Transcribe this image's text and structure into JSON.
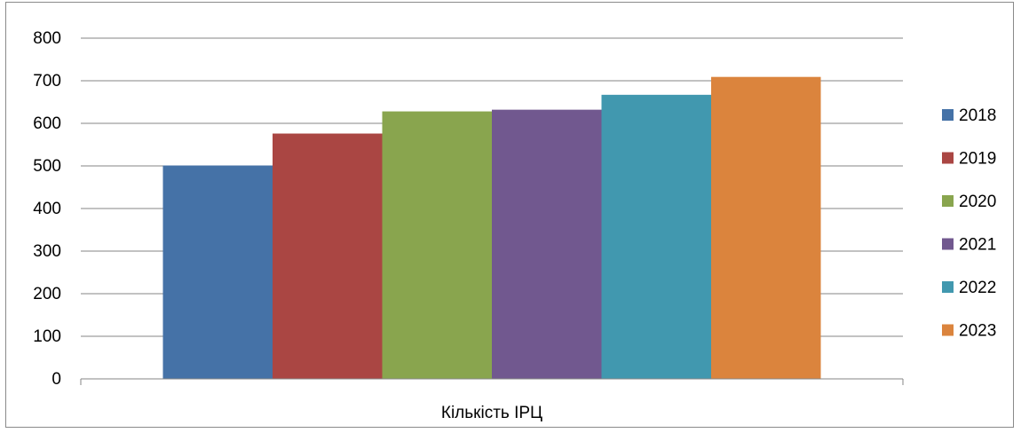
{
  "chart_data": {
    "type": "bar",
    "categories": [
      "Кількість ІРЦ"
    ],
    "series": [
      {
        "name": "2018",
        "values": [
          501
        ],
        "color": "#4572A7"
      },
      {
        "name": "2019",
        "values": [
          576
        ],
        "color": "#AA4643"
      },
      {
        "name": "2020",
        "values": [
          628
        ],
        "color": "#89A54E"
      },
      {
        "name": "2021",
        "values": [
          632
        ],
        "color": "#71588F"
      },
      {
        "name": "2022",
        "values": [
          667
        ],
        "color": "#4198AF"
      },
      {
        "name": "2023",
        "values": [
          709
        ],
        "color": "#DB843D"
      }
    ],
    "title": "",
    "xlabel": "",
    "ylabel": "",
    "ylim": [
      0,
      800
    ],
    "yticks": [
      0,
      100,
      200,
      300,
      400,
      500,
      600,
      700,
      800
    ],
    "grid": true,
    "legend_position": "right"
  }
}
